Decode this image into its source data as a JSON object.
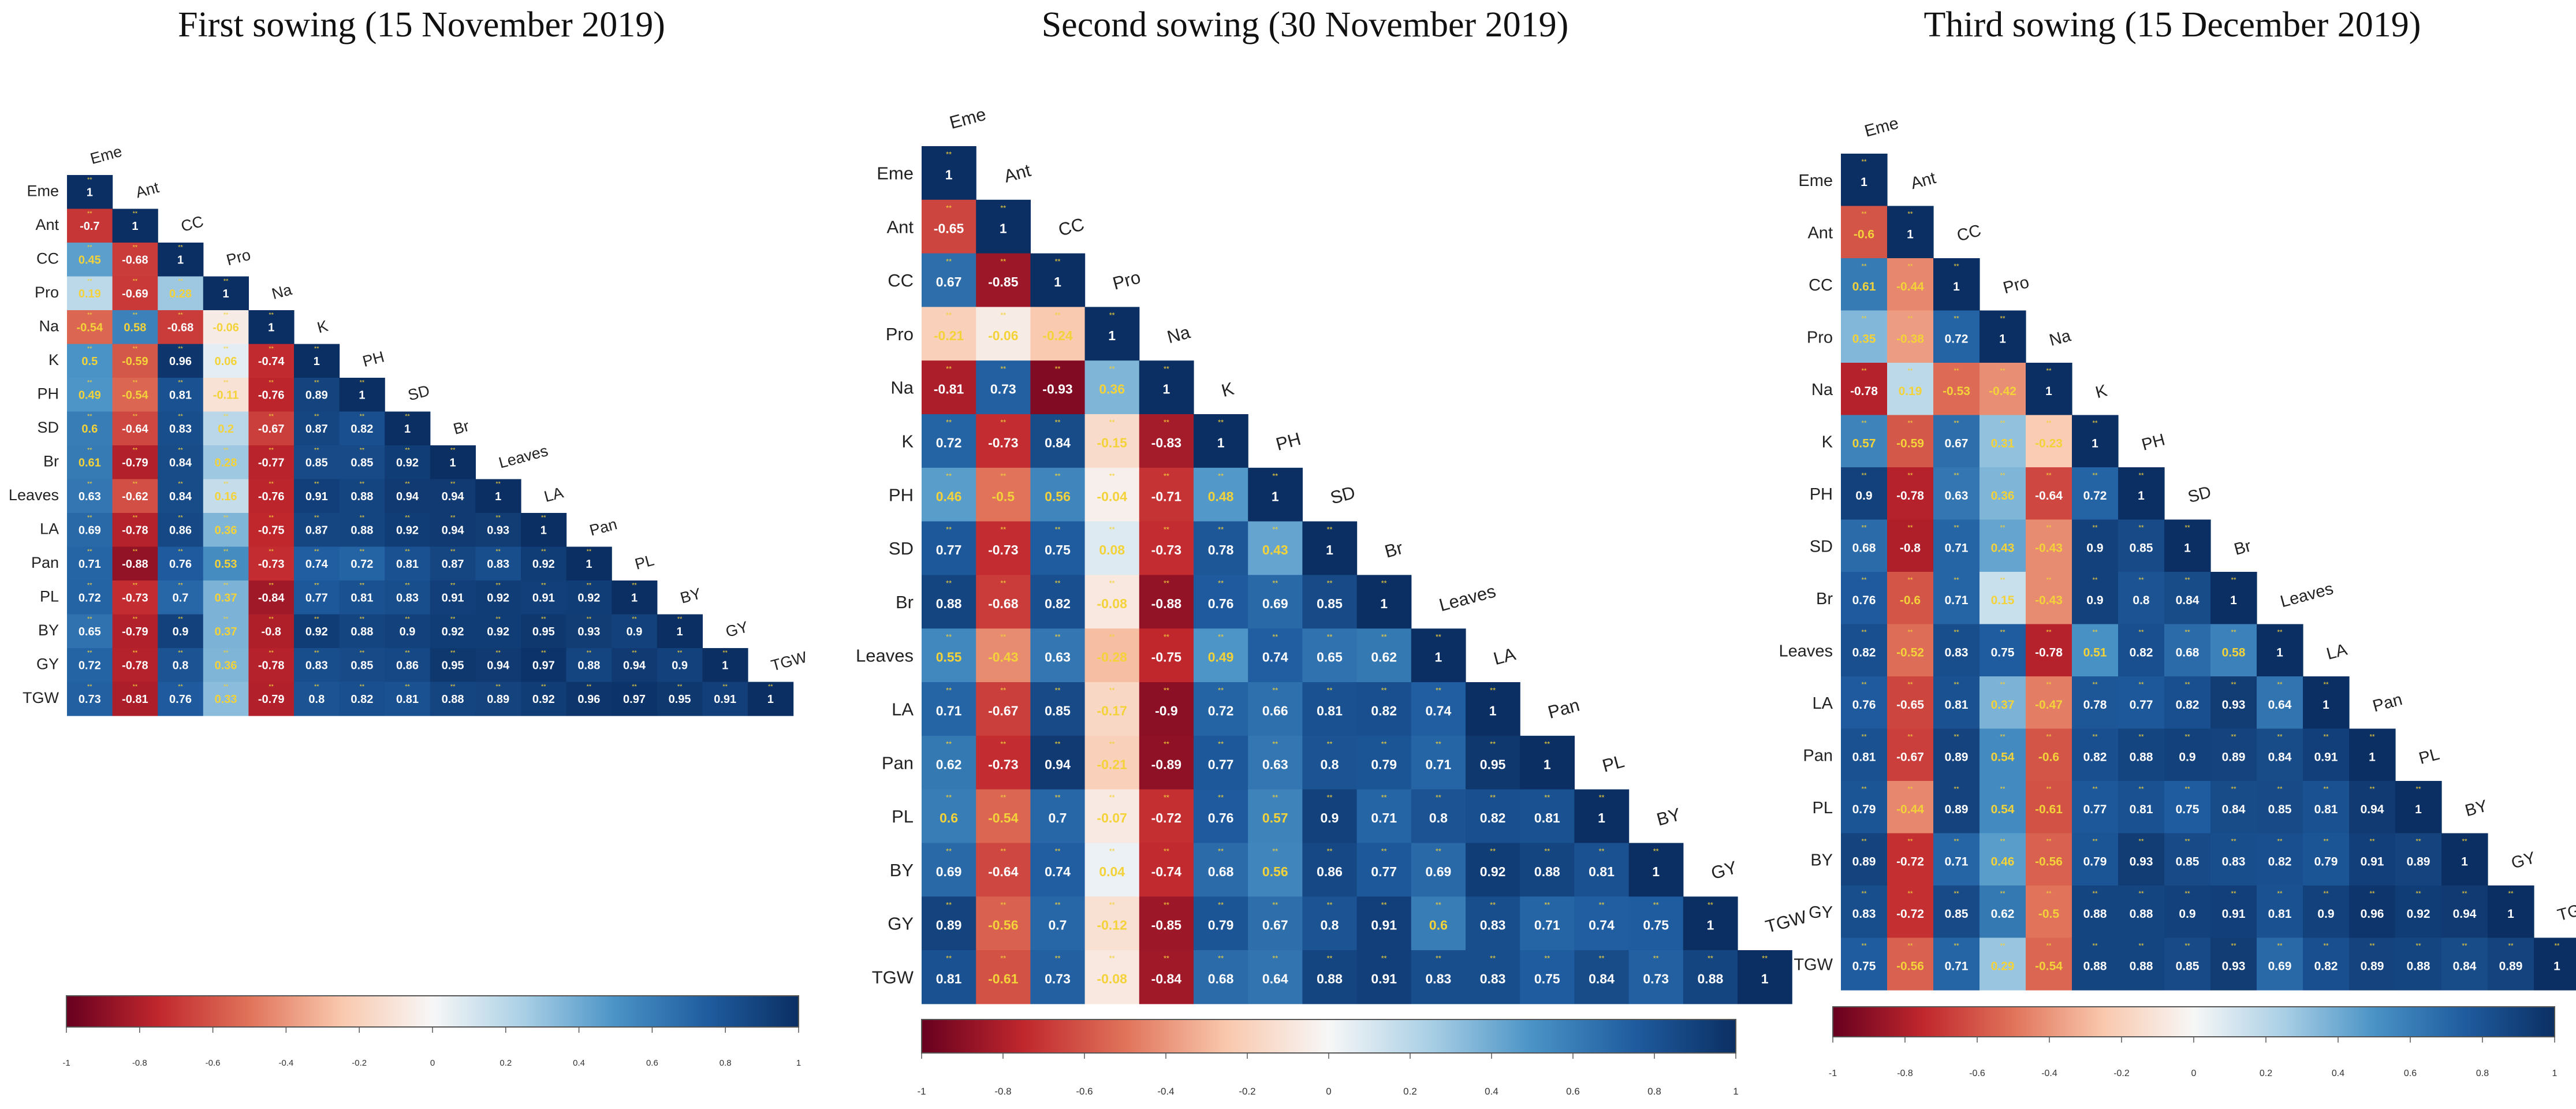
{
  "variables": [
    "Eme",
    "Ant",
    "CC",
    "Pro",
    "Na",
    "K",
    "PH",
    "SD",
    "Br",
    "Leaves",
    "LA",
    "Pan",
    "PL",
    "BY",
    "GY",
    "TGW"
  ],
  "colorscale": {
    "stops": [
      {
        "v": -1.0,
        "color": "#67001f"
      },
      {
        "v": -0.75,
        "color": "#c0272d"
      },
      {
        "v": -0.5,
        "color": "#e0735a"
      },
      {
        "v": -0.25,
        "color": "#f9c8ad"
      },
      {
        "v": 0.0,
        "color": "#f7f7f7"
      },
      {
        "v": 0.25,
        "color": "#a9cfe5"
      },
      {
        "v": 0.5,
        "color": "#4a93c6"
      },
      {
        "v": 0.75,
        "color": "#1f5c9f"
      },
      {
        "v": 1.0,
        "color": "#0b2f63"
      }
    ],
    "ticks": [
      "-1",
      "-0.8",
      "-0.6",
      "-0.4",
      "-0.2",
      "0",
      "0.2",
      "0.4",
      "0.6",
      "0.8",
      "1"
    ]
  },
  "chart_data": [
    {
      "type": "heatmap",
      "title": "First sowing (15 November 2019)",
      "variables": [
        "Eme",
        "Ant",
        "CC",
        "Pro",
        "Na",
        "K",
        "PH",
        "SD",
        "Br",
        "Leaves",
        "LA",
        "Pan",
        "PL",
        "BY",
        "GY",
        "TGW"
      ],
      "significance_mark": "**",
      "values": [
        [
          "1"
        ],
        [
          "-0.7",
          "1"
        ],
        [
          "0.45",
          "-0.68",
          "1"
        ],
        [
          "0.19",
          "-0.69",
          "0.28",
          "1"
        ],
        [
          "-0.54",
          "0.58",
          "-0.68",
          "-0.06",
          "1"
        ],
        [
          "0.5",
          "-0.59",
          "0.96",
          "0.06",
          "-0.74",
          "1"
        ],
        [
          "0.49",
          "-0.54",
          "0.81",
          "-0.11",
          "-0.76",
          "0.89",
          "1"
        ],
        [
          "0.6",
          "-0.64",
          "0.83",
          "0.2",
          "-0.67",
          "0.87",
          "0.82",
          "1"
        ],
        [
          "0.61",
          "-0.79",
          "0.84",
          "0.28",
          "-0.77",
          "0.85",
          "0.85",
          "0.92",
          "1"
        ],
        [
          "0.63",
          "-0.62",
          "0.84",
          "0.16",
          "-0.76",
          "0.91",
          "0.88",
          "0.94",
          "0.94",
          "1"
        ],
        [
          "0.69",
          "-0.78",
          "0.86",
          "0.36",
          "-0.75",
          "0.87",
          "0.88",
          "0.92",
          "0.94",
          "0.93",
          "1"
        ],
        [
          "0.71",
          "-0.88",
          "0.76",
          "0.53",
          "-0.73",
          "0.74",
          "0.72",
          "0.81",
          "0.87",
          "0.83",
          "0.92",
          "1"
        ],
        [
          "0.72",
          "-0.73",
          "0.7",
          "0.37",
          "-0.84",
          "0.77",
          "0.81",
          "0.83",
          "0.91",
          "0.92",
          "0.91",
          "0.92",
          "1"
        ],
        [
          "0.65",
          "-0.79",
          "0.9",
          "0.37",
          "-0.8",
          "0.92",
          "0.88",
          "0.9",
          "0.92",
          "0.92",
          "0.95",
          "0.93",
          "0.9",
          "1"
        ],
        [
          "0.72",
          "-0.78",
          "0.8",
          "0.36",
          "-0.78",
          "0.83",
          "0.85",
          "0.86",
          "0.95",
          "0.94",
          "0.97",
          "0.88",
          "0.94",
          "0.9",
          "1"
        ],
        [
          "0.73",
          "-0.81",
          "0.76",
          "0.33",
          "-0.79",
          "0.8",
          "0.82",
          "0.81",
          "0.88",
          "0.89",
          "0.92",
          "0.96",
          "0.97",
          "0.95",
          "0.91",
          "1"
        ]
      ],
      "legend_range": [
        -1,
        1
      ]
    },
    {
      "type": "heatmap",
      "title": "Second sowing (30 November 2019)",
      "variables": [
        "Eme",
        "Ant",
        "CC",
        "Pro",
        "Na",
        "K",
        "PH",
        "SD",
        "Br",
        "Leaves",
        "LA",
        "Pan",
        "PL",
        "BY",
        "GY",
        "TGW"
      ],
      "significance_mark": "**",
      "values": [
        [
          "1"
        ],
        [
          "-0.65",
          "1"
        ],
        [
          "0.67",
          "-0.85",
          "1"
        ],
        [
          "-0.21",
          "-0.06",
          "-0.24",
          "1"
        ],
        [
          "-0.81",
          "0.73",
          "-0.93",
          "0.36",
          "1"
        ],
        [
          "0.72",
          "-0.73",
          "0.84",
          "-0.15",
          "-0.83",
          "1"
        ],
        [
          "0.46",
          "-0.5",
          "0.56",
          "-0.04",
          "-0.71",
          "0.48",
          "1"
        ],
        [
          "0.77",
          "-0.73",
          "0.75",
          "0.08",
          "-0.73",
          "0.78",
          "0.43",
          "1"
        ],
        [
          "0.88",
          "-0.68",
          "0.82",
          "-0.08",
          "-0.88",
          "0.76",
          "0.69",
          "0.85",
          "1"
        ],
        [
          "0.55",
          "-0.43",
          "0.63",
          "-0.28",
          "-0.75",
          "0.49",
          "0.74",
          "0.65",
          "0.62",
          "1"
        ],
        [
          "0.71",
          "-0.67",
          "0.85",
          "-0.17",
          "-0.9",
          "0.72",
          "0.66",
          "0.81",
          "0.82",
          "0.74",
          "1"
        ],
        [
          "0.62",
          "-0.73",
          "0.94",
          "-0.21",
          "-0.89",
          "0.77",
          "0.63",
          "0.8",
          "0.79",
          "0.71",
          "0.95",
          "1"
        ],
        [
          "0.6",
          "-0.54",
          "0.7",
          "-0.07",
          "-0.72",
          "0.76",
          "0.57",
          "0.9",
          "0.71",
          "0.8",
          "0.82",
          "0.81",
          "1"
        ],
        [
          "0.69",
          "-0.64",
          "0.74",
          "0.04",
          "-0.74",
          "0.68",
          "0.56",
          "0.86",
          "0.77",
          "0.69",
          "0.92",
          "0.88",
          "0.81",
          "1"
        ],
        [
          "0.89",
          "-0.56",
          "0.7",
          "-0.12",
          "-0.85",
          "0.79",
          "0.67",
          "0.8",
          "0.91",
          "0.6",
          "0.83",
          "0.71",
          "0.74",
          "0.75",
          "1"
        ],
        [
          "0.81",
          "-0.61",
          "0.73",
          "-0.08",
          "-0.84",
          "0.68",
          "0.64",
          "0.88",
          "0.91",
          "0.83",
          "0.83",
          "0.75",
          "0.84",
          "0.73",
          "0.88",
          "1"
        ]
      ],
      "legend_range": [
        -1,
        1
      ]
    },
    {
      "type": "heatmap",
      "title": "Third sowing (15 December 2019)",
      "variables": [
        "Eme",
        "Ant",
        "CC",
        "Pro",
        "Na",
        "K",
        "PH",
        "SD",
        "Br",
        "Leaves",
        "LA",
        "Pan",
        "PL",
        "BY",
        "GY",
        "TGW"
      ],
      "significance_mark": "**",
      "values": [
        [
          "1"
        ],
        [
          "-0.6",
          "1"
        ],
        [
          "0.61",
          "-0.44",
          "1"
        ],
        [
          "0.35",
          "-0.38",
          "0.72",
          "1"
        ],
        [
          "-0.78",
          "0.19",
          "-0.53",
          "-0.42",
          "1"
        ],
        [
          "0.57",
          "-0.59",
          "0.67",
          "0.31",
          "-0.23",
          "1"
        ],
        [
          "0.9",
          "-0.78",
          "0.63",
          "0.36",
          "-0.64",
          "0.72",
          "1"
        ],
        [
          "0.68",
          "-0.8",
          "0.71",
          "0.43",
          "-0.43",
          "0.9",
          "0.85",
          "1"
        ],
        [
          "0.76",
          "-0.6",
          "0.71",
          "0.15",
          "-0.43",
          "0.9",
          "0.8",
          "0.84",
          "1"
        ],
        [
          "0.82",
          "-0.52",
          "0.83",
          "0.75",
          "-0.78",
          "0.51",
          "0.82",
          "0.68",
          "0.58",
          "1"
        ],
        [
          "0.76",
          "-0.65",
          "0.81",
          "0.37",
          "-0.47",
          "0.78",
          "0.77",
          "0.82",
          "0.93",
          "0.64",
          "1"
        ],
        [
          "0.81",
          "-0.67",
          "0.89",
          "0.54",
          "-0.6",
          "0.82",
          "0.88",
          "0.9",
          "0.89",
          "0.84",
          "0.91",
          "1"
        ],
        [
          "0.79",
          "-0.44",
          "0.89",
          "0.54",
          "-0.61",
          "0.77",
          "0.81",
          "0.75",
          "0.84",
          "0.85",
          "0.81",
          "0.94",
          "1"
        ],
        [
          "0.89",
          "-0.72",
          "0.71",
          "0.46",
          "-0.56",
          "0.79",
          "0.93",
          "0.85",
          "0.83",
          "0.82",
          "0.79",
          "0.91",
          "0.89",
          "1"
        ],
        [
          "0.83",
          "-0.72",
          "0.85",
          "0.62",
          "-0.5",
          "0.88",
          "0.88",
          "0.9",
          "0.91",
          "0.81",
          "0.9",
          "0.96",
          "0.92",
          "0.94",
          "1"
        ],
        [
          "0.75",
          "-0.56",
          "0.71",
          "0.29",
          "-0.54",
          "0.88",
          "0.88",
          "0.85",
          "0.93",
          "0.69",
          "0.82",
          "0.89",
          "0.88",
          "0.84",
          "0.89",
          "1"
        ]
      ],
      "legend_range": [
        -1,
        1
      ]
    }
  ]
}
